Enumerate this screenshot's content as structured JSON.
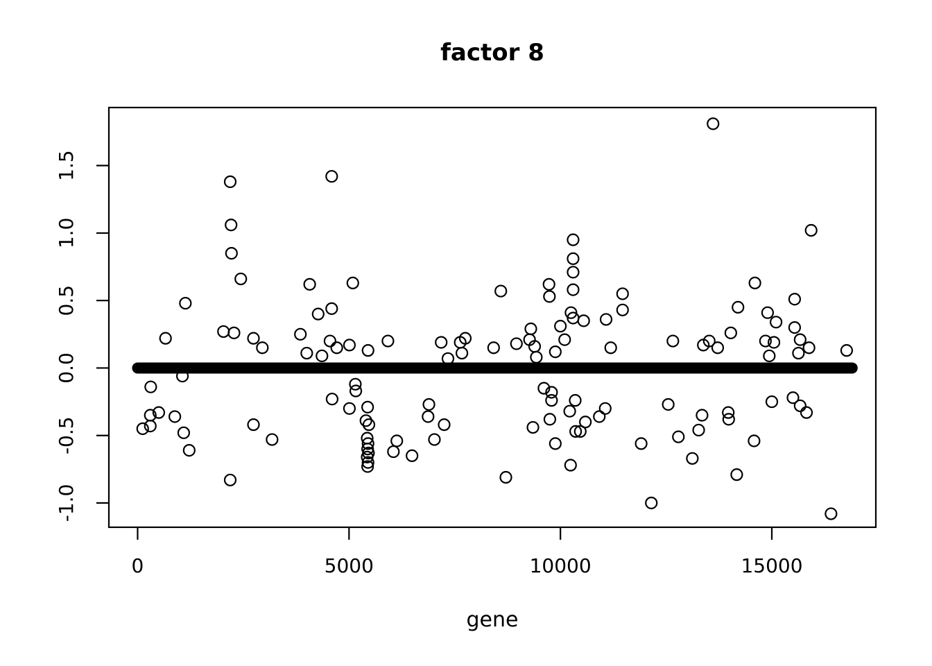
{
  "title": "factor 8",
  "xlabel": "gene",
  "colors": {
    "foreground": "#000000",
    "background": "#ffffff"
  },
  "chart_data": {
    "type": "scatter",
    "title": "factor 8",
    "xlabel": "gene",
    "ylabel": "",
    "xlim": [
      -680,
      17460
    ],
    "ylim": [
      -1.18,
      1.93
    ],
    "x_ticks": [
      0,
      5000,
      10000,
      15000
    ],
    "y_ticks": [
      -1.0,
      -0.5,
      0.0,
      0.5,
      1.0,
      1.5
    ],
    "grid": false,
    "legend": "none",
    "marker": "open-circle",
    "marker_radius_px": 8,
    "zero_band": {
      "description": "dense overplotted run of points with value ~0 for nearly all genes, drawn as a thick black band",
      "x_start": 0,
      "x_end": 16900,
      "y": 0,
      "thickness_px": 16
    },
    "points": [
      [
        120,
        -0.45
      ],
      [
        300,
        -0.35
      ],
      [
        300,
        -0.43
      ],
      [
        310,
        -0.14
      ],
      [
        500,
        -0.33
      ],
      [
        660,
        0.22
      ],
      [
        880,
        -0.36
      ],
      [
        1060,
        -0.06
      ],
      [
        1090,
        -0.48
      ],
      [
        1130,
        0.48
      ],
      [
        1220,
        -0.61
      ],
      [
        2030,
        0.27
      ],
      [
        2190,
        1.38
      ],
      [
        2210,
        1.06
      ],
      [
        2220,
        0.85
      ],
      [
        2280,
        0.26
      ],
      [
        2190,
        -0.83
      ],
      [
        2440,
        0.66
      ],
      [
        2740,
        0.22
      ],
      [
        2740,
        -0.42
      ],
      [
        2950,
        0.15
      ],
      [
        3180,
        -0.53
      ],
      [
        3850,
        0.25
      ],
      [
        4000,
        0.11
      ],
      [
        4070,
        0.62
      ],
      [
        4270,
        0.4
      ],
      [
        4360,
        0.09
      ],
      [
        4550,
        0.2
      ],
      [
        4590,
        1.42
      ],
      [
        4590,
        0.44
      ],
      [
        4600,
        -0.23
      ],
      [
        4710,
        0.15
      ],
      [
        5010,
        0.17
      ],
      [
        5010,
        -0.3
      ],
      [
        5090,
        0.63
      ],
      [
        5150,
        -0.12
      ],
      [
        5160,
        -0.17
      ],
      [
        5450,
        0.13
      ],
      [
        5440,
        -0.29
      ],
      [
        5400,
        -0.39
      ],
      [
        5470,
        -0.42
      ],
      [
        5430,
        -0.52
      ],
      [
        5450,
        -0.56
      ],
      [
        5440,
        -0.6
      ],
      [
        5460,
        -0.63
      ],
      [
        5430,
        -0.66
      ],
      [
        5450,
        -0.7
      ],
      [
        5440,
        -0.73
      ],
      [
        5920,
        0.2
      ],
      [
        6050,
        -0.62
      ],
      [
        6130,
        -0.54
      ],
      [
        6490,
        -0.65
      ],
      [
        6870,
        -0.36
      ],
      [
        6890,
        -0.27
      ],
      [
        7020,
        -0.53
      ],
      [
        7180,
        0.19
      ],
      [
        7250,
        -0.42
      ],
      [
        7340,
        0.07
      ],
      [
        7630,
        0.19
      ],
      [
        7670,
        0.11
      ],
      [
        7750,
        0.22
      ],
      [
        8420,
        0.15
      ],
      [
        8590,
        0.57
      ],
      [
        8710,
        -0.81
      ],
      [
        8960,
        0.18
      ],
      [
        9270,
        0.21
      ],
      [
        9300,
        0.29
      ],
      [
        9350,
        -0.44
      ],
      [
        9390,
        0.16
      ],
      [
        9430,
        0.08
      ],
      [
        9610,
        -0.15
      ],
      [
        9730,
        0.62
      ],
      [
        9740,
        0.53
      ],
      [
        9750,
        -0.38
      ],
      [
        9790,
        -0.18
      ],
      [
        9790,
        -0.24
      ],
      [
        9880,
        0.12
      ],
      [
        9880,
        -0.56
      ],
      [
        10000,
        0.31
      ],
      [
        10100,
        0.21
      ],
      [
        10220,
        -0.32
      ],
      [
        10240,
        -0.72
      ],
      [
        10250,
        0.41
      ],
      [
        10300,
        0.95
      ],
      [
        10300,
        0.81
      ],
      [
        10300,
        0.71
      ],
      [
        10300,
        0.58
      ],
      [
        10300,
        0.37
      ],
      [
        10350,
        -0.24
      ],
      [
        10360,
        -0.47
      ],
      [
        10470,
        -0.47
      ],
      [
        10550,
        0.35
      ],
      [
        10590,
        -0.4
      ],
      [
        10920,
        -0.36
      ],
      [
        11060,
        -0.3
      ],
      [
        11080,
        0.36
      ],
      [
        11190,
        0.15
      ],
      [
        11470,
        0.55
      ],
      [
        11470,
        0.43
      ],
      [
        11910,
        -0.56
      ],
      [
        12150,
        -1.0
      ],
      [
        12550,
        -0.27
      ],
      [
        12660,
        0.2
      ],
      [
        12790,
        -0.51
      ],
      [
        13120,
        -0.67
      ],
      [
        13270,
        -0.46
      ],
      [
        13350,
        -0.35
      ],
      [
        13380,
        0.17
      ],
      [
        13520,
        0.2
      ],
      [
        13610,
        1.81
      ],
      [
        13720,
        0.15
      ],
      [
        13970,
        -0.33
      ],
      [
        13980,
        -0.38
      ],
      [
        14030,
        0.26
      ],
      [
        14170,
        -0.79
      ],
      [
        14200,
        0.45
      ],
      [
        14580,
        -0.54
      ],
      [
        14600,
        0.63
      ],
      [
        14850,
        0.2
      ],
      [
        14900,
        0.41
      ],
      [
        14940,
        0.09
      ],
      [
        15000,
        -0.25
      ],
      [
        15050,
        0.19
      ],
      [
        15100,
        0.34
      ],
      [
        15500,
        -0.22
      ],
      [
        15540,
        0.51
      ],
      [
        15540,
        0.3
      ],
      [
        15630,
        0.11
      ],
      [
        15670,
        0.21
      ],
      [
        15670,
        -0.28
      ],
      [
        15820,
        -0.33
      ],
      [
        15880,
        0.15
      ],
      [
        15930,
        1.02
      ],
      [
        16400,
        -1.08
      ],
      [
        16770,
        0.13
      ]
    ]
  }
}
